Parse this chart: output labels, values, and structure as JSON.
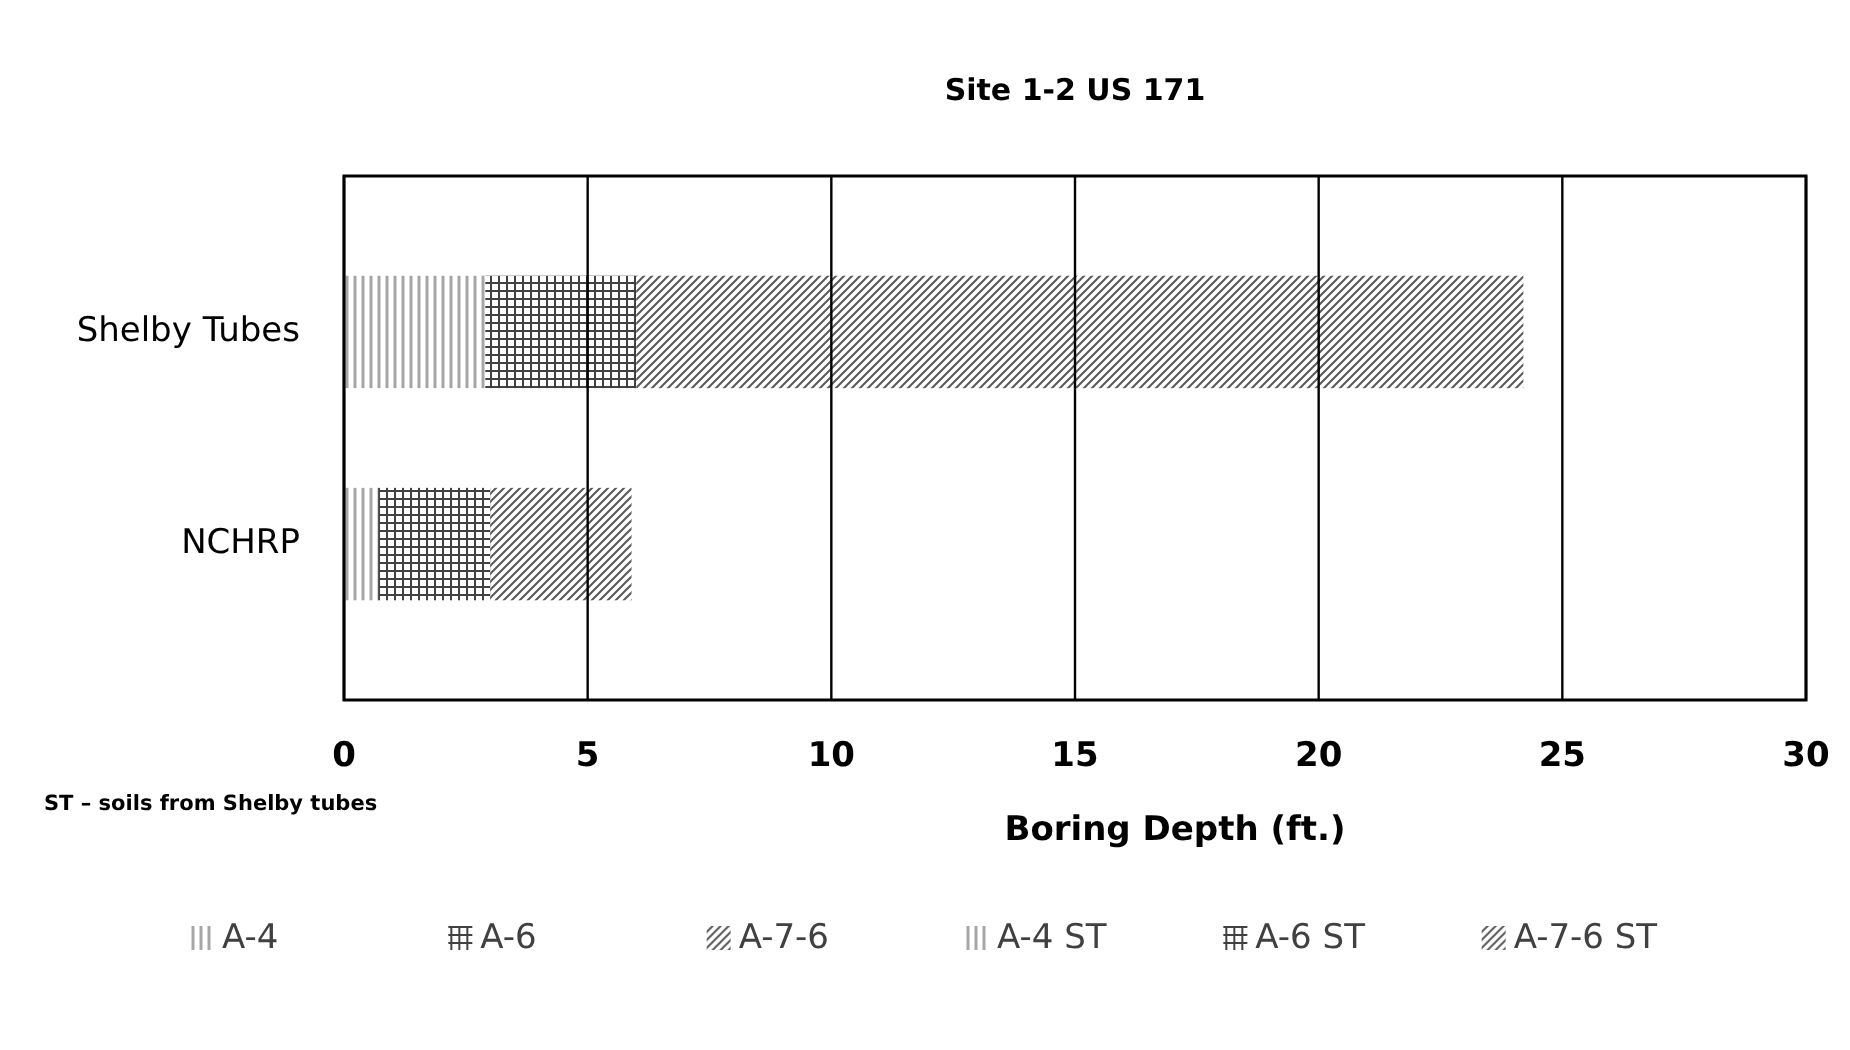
{
  "chart_data": {
    "type": "bar",
    "orientation": "horizontal",
    "stacked": true,
    "title": "Site 1-2 US 171",
    "xlabel": "Boring Depth (ft.)",
    "categories": [
      "Shelby Tubes",
      "NCHRP"
    ],
    "series": [
      {
        "name": "A-4",
        "color": "#a6a6a6",
        "values": [
          null,
          0.7
        ]
      },
      {
        "name": "A-6",
        "color": "#404040",
        "values": [
          null,
          2.3
        ]
      },
      {
        "name": "A-7-6",
        "color": "#595959",
        "values": [
          null,
          2.9
        ]
      },
      {
        "name": "A-4 ST",
        "color": "#a6a6a6",
        "values": [
          2.9,
          null
        ]
      },
      {
        "name": "A-6  ST",
        "color": "#404040",
        "values": [
          3.1,
          null
        ]
      },
      {
        "name": "A-7-6 ST",
        "color": "#595959",
        "values": [
          18.2,
          null
        ]
      }
    ],
    "xlim": [
      0,
      30
    ],
    "xticks": [
      0,
      5,
      10,
      15,
      20,
      25,
      30
    ],
    "grid": "x",
    "legend": "bottom",
    "annotations": [
      "ST – soils from Shelby tubes"
    ]
  }
}
